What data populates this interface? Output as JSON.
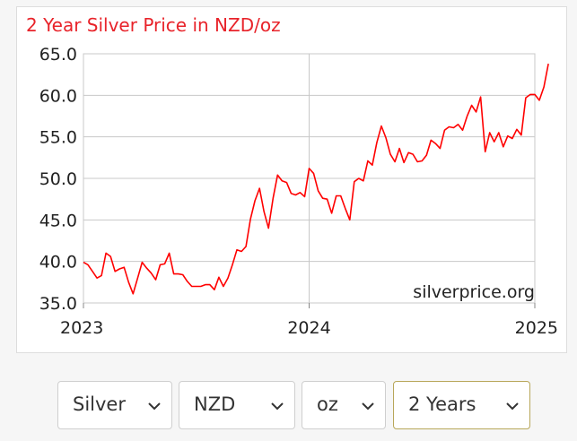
{
  "chart_data": {
    "type": "line",
    "title": "2 Year Silver Price in NZD/oz",
    "xlabel": "",
    "ylabel": "",
    "x_ticks": [
      "2023",
      "2024",
      "2025"
    ],
    "y_ticks": [
      "35.0",
      "40.0",
      "45.0",
      "50.0",
      "55.0",
      "60.0",
      "65.0"
    ],
    "xlim": [
      2023.0,
      2025.0
    ],
    "ylim": [
      35.0,
      65.0
    ],
    "grid": true,
    "watermark": "silverprice.org",
    "series": [
      {
        "color": "#ff0000",
        "points": [
          [
            2023.0,
            39.9
          ],
          [
            2023.02,
            39.6
          ],
          [
            2023.04,
            38.8
          ],
          [
            2023.06,
            38.0
          ],
          [
            2023.08,
            38.3
          ],
          [
            2023.1,
            41.0
          ],
          [
            2023.12,
            40.6
          ],
          [
            2023.14,
            38.8
          ],
          [
            2023.16,
            39.1
          ],
          [
            2023.18,
            39.3
          ],
          [
            2023.2,
            37.5
          ],
          [
            2023.22,
            36.1
          ],
          [
            2023.24,
            38.0
          ],
          [
            2023.26,
            39.9
          ],
          [
            2023.28,
            39.2
          ],
          [
            2023.3,
            38.6
          ],
          [
            2023.32,
            37.8
          ],
          [
            2023.34,
            39.6
          ],
          [
            2023.36,
            39.7
          ],
          [
            2023.38,
            41.0
          ],
          [
            2023.4,
            38.5
          ],
          [
            2023.42,
            38.5
          ],
          [
            2023.44,
            38.4
          ],
          [
            2023.46,
            37.6
          ],
          [
            2023.48,
            37.0
          ],
          [
            2023.5,
            37.0
          ],
          [
            2023.52,
            37.0
          ],
          [
            2023.54,
            37.2
          ],
          [
            2023.56,
            37.2
          ],
          [
            2023.58,
            36.6
          ],
          [
            2023.6,
            38.1
          ],
          [
            2023.62,
            37.0
          ],
          [
            2023.64,
            38.0
          ],
          [
            2023.66,
            39.6
          ],
          [
            2023.68,
            41.4
          ],
          [
            2023.7,
            41.2
          ],
          [
            2023.72,
            41.8
          ],
          [
            2023.74,
            45.1
          ],
          [
            2023.76,
            47.3
          ],
          [
            2023.78,
            48.8
          ],
          [
            2023.8,
            46.0
          ],
          [
            2023.82,
            44.0
          ],
          [
            2023.84,
            47.6
          ],
          [
            2023.86,
            50.4
          ],
          [
            2023.88,
            49.7
          ],
          [
            2023.9,
            49.5
          ],
          [
            2023.92,
            48.2
          ],
          [
            2023.94,
            48.0
          ],
          [
            2023.96,
            48.3
          ],
          [
            2023.98,
            47.8
          ],
          [
            2024.0,
            51.2
          ],
          [
            2024.02,
            50.6
          ],
          [
            2024.04,
            48.5
          ],
          [
            2024.06,
            47.6
          ],
          [
            2024.08,
            47.5
          ],
          [
            2024.1,
            45.8
          ],
          [
            2024.12,
            47.9
          ],
          [
            2024.14,
            47.9
          ],
          [
            2024.16,
            46.4
          ],
          [
            2024.18,
            45.0
          ],
          [
            2024.2,
            49.6
          ],
          [
            2024.22,
            50.0
          ],
          [
            2024.24,
            49.7
          ],
          [
            2024.26,
            52.1
          ],
          [
            2024.28,
            51.6
          ],
          [
            2024.3,
            54.3
          ],
          [
            2024.32,
            56.3
          ],
          [
            2024.34,
            54.9
          ],
          [
            2024.36,
            52.9
          ],
          [
            2024.38,
            52.0
          ],
          [
            2024.4,
            53.6
          ],
          [
            2024.42,
            51.9
          ],
          [
            2024.44,
            53.1
          ],
          [
            2024.46,
            52.9
          ],
          [
            2024.48,
            52.0
          ],
          [
            2024.5,
            52.1
          ],
          [
            2024.52,
            52.8
          ],
          [
            2024.54,
            54.6
          ],
          [
            2024.56,
            54.2
          ],
          [
            2024.58,
            53.6
          ],
          [
            2024.6,
            55.8
          ],
          [
            2024.62,
            56.2
          ],
          [
            2024.64,
            56.1
          ],
          [
            2024.66,
            56.5
          ],
          [
            2024.68,
            55.8
          ],
          [
            2024.7,
            57.5
          ],
          [
            2024.72,
            58.8
          ],
          [
            2024.74,
            58.0
          ],
          [
            2024.76,
            59.8
          ],
          [
            2024.78,
            53.2
          ],
          [
            2024.8,
            55.5
          ],
          [
            2024.82,
            54.4
          ],
          [
            2024.84,
            55.5
          ],
          [
            2024.86,
            53.8
          ],
          [
            2024.88,
            55.1
          ],
          [
            2024.9,
            54.8
          ],
          [
            2024.92,
            55.9
          ],
          [
            2024.94,
            55.2
          ],
          [
            2024.96,
            59.7
          ],
          [
            2024.98,
            60.1
          ],
          [
            2025.0,
            60.1
          ],
          [
            2025.02,
            59.4
          ],
          [
            2025.04,
            61.0
          ],
          [
            2025.06,
            63.8
          ]
        ]
      }
    ]
  },
  "controls": {
    "metal": "Silver",
    "currency": "NZD",
    "unit": "oz",
    "period": "2 Years"
  },
  "icons": {
    "dropdown": "chevron-down-icon"
  },
  "colors": {
    "line": "#ff0000",
    "title": "#e8232a",
    "grid": "#c8c8c8",
    "active_border": "#b8a75a"
  }
}
